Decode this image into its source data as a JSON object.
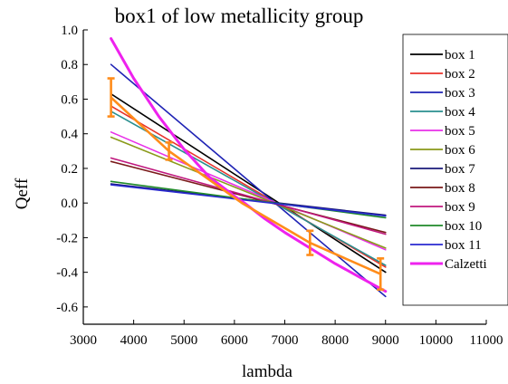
{
  "chart_data": {
    "type": "line",
    "title": "box1 of low metallicity group",
    "xlabel": "lambda",
    "ylabel": "Qeff",
    "xlim": [
      3000,
      11000
    ],
    "ylim": [
      -0.7,
      1.0
    ],
    "xticks": [
      3000,
      4000,
      5000,
      6000,
      7000,
      8000,
      9000,
      10000,
      11000
    ],
    "yticks": [
      1.0,
      0.8,
      0.6,
      0.4,
      0.2,
      0.0,
      -0.2,
      -0.4,
      -0.6
    ],
    "ytick_labels": [
      "1.0",
      "0.8",
      "0.6",
      "0.4",
      "0.2",
      "0.0",
      "-0.2",
      "-0.4",
      "-0.6"
    ],
    "grid": false,
    "legend_position": "right",
    "x": [
      3550,
      9000
    ],
    "series": [
      {
        "name": "box 1",
        "color": "#000000",
        "values": [
          0.63,
          -0.4
        ]
      },
      {
        "name": "box 2",
        "color": "#e8322b",
        "values": [
          0.56,
          -0.37
        ]
      },
      {
        "name": "box 3",
        "color": "#1f23b5",
        "values": [
          0.8,
          -0.54
        ]
      },
      {
        "name": "box 4",
        "color": "#2a8f8f",
        "values": [
          0.53,
          -0.36
        ]
      },
      {
        "name": "box 5",
        "color": "#e831e8",
        "values": [
          0.41,
          -0.27
        ]
      },
      {
        "name": "box 6",
        "color": "#8a9a1a",
        "values": [
          0.38,
          -0.26
        ]
      },
      {
        "name": "box 7",
        "color": "#1a1a7a",
        "values": [
          0.11,
          -0.07
        ]
      },
      {
        "name": "box 8",
        "color": "#7a1a1a",
        "values": [
          0.24,
          -0.17
        ]
      },
      {
        "name": "box 9",
        "color": "#c0187e",
        "values": [
          0.26,
          -0.18
        ]
      },
      {
        "name": "box 10",
        "color": "#1f8a2a",
        "values": [
          0.125,
          -0.085
        ]
      },
      {
        "name": "box 11",
        "color": "#2a2ad0",
        "values": [
          0.105,
          -0.075
        ]
      },
      {
        "name": "Calzetti",
        "color": "#ee22ee",
        "x": [
          3550,
          4000,
          4500,
          5000,
          5500,
          6000,
          6200,
          6600,
          7000,
          7500,
          8000,
          8500,
          9000
        ],
        "values": [
          0.95,
          0.72,
          0.5,
          0.31,
          0.15,
          0.04,
          0.0,
          -0.09,
          -0.17,
          -0.26,
          -0.35,
          -0.43,
          -0.51
        ]
      }
    ],
    "highlight": {
      "color": "#ff8c1a",
      "x": [
        3550,
        4700,
        6150,
        7500,
        8900
      ],
      "values": [
        0.61,
        0.3,
        0.0,
        -0.23,
        -0.41
      ],
      "error_low": [
        0.5,
        0.25,
        0.0,
        -0.3,
        -0.5
      ],
      "error_high": [
        0.72,
        0.35,
        0.0,
        -0.16,
        -0.32
      ]
    }
  }
}
